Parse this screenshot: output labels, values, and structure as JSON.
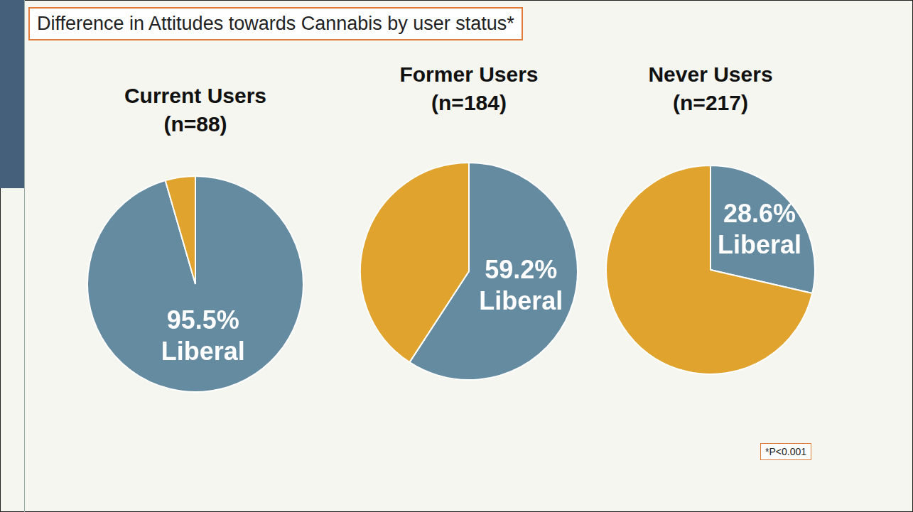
{
  "title": "Difference in Attitudes towards Cannabis by user status*",
  "note": "*P<0.001",
  "chart_data": [
    {
      "type": "pie",
      "title": "Current Users",
      "subtitle": "(n=88)",
      "categories": [
        "Liberal",
        null
      ],
      "values": [
        95.5,
        4.5
      ],
      "colors": [
        "#648ba0",
        "#e0a32e"
      ],
      "data_labels": true,
      "value_labels": [
        "95.5%",
        null
      ]
    },
    {
      "type": "pie",
      "title": "Former Users",
      "subtitle": "(n=184)",
      "categories": [
        "Liberal",
        null
      ],
      "values": [
        59.2,
        40.8
      ],
      "colors": [
        "#648ba0",
        "#e0a32e"
      ],
      "data_labels": true,
      "value_labels": [
        "59.2%",
        null
      ]
    },
    {
      "type": "pie",
      "title": "Never Users",
      "subtitle": "(n=217)",
      "categories": [
        "Liberal",
        null
      ],
      "values": [
        28.6,
        71.4
      ],
      "colors": [
        "#648ba0",
        "#e0a32e"
      ],
      "data_labels": true,
      "value_labels": [
        "28.6%",
        null
      ]
    }
  ]
}
